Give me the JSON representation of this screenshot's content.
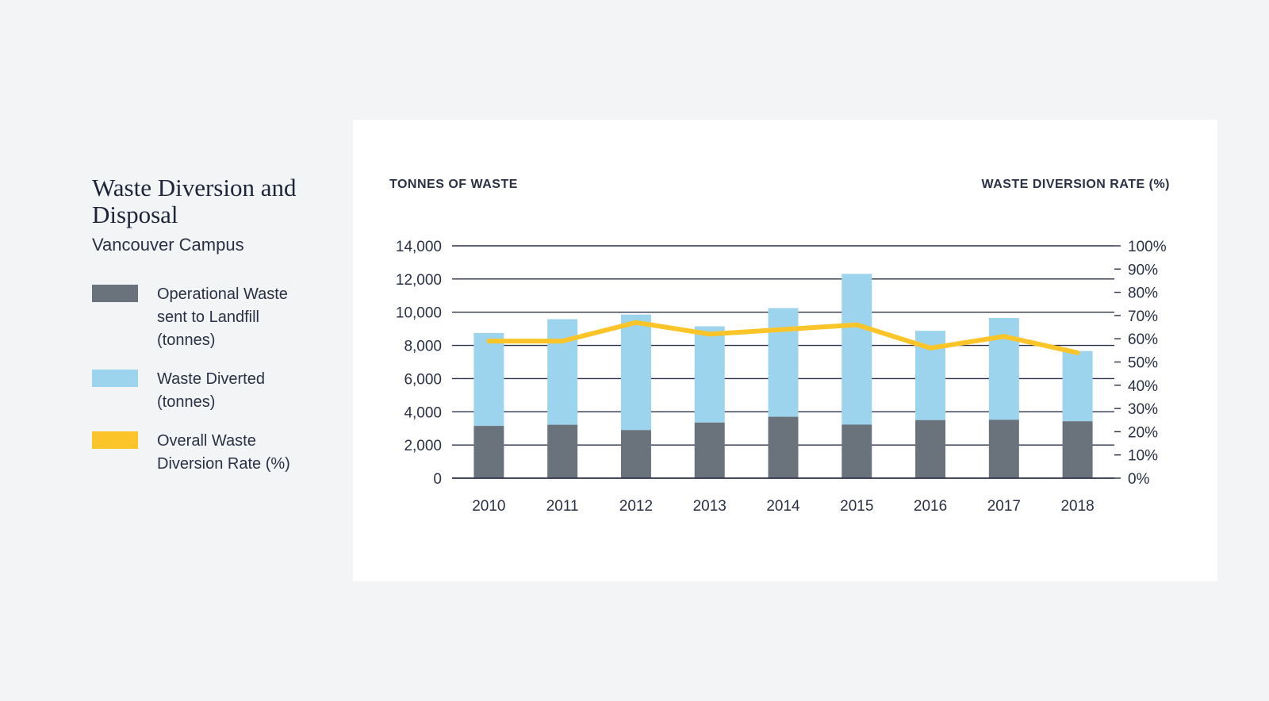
{
  "title": "Waste Diversion and Disposal",
  "subtitle": "Vancouver Campus",
  "legend": [
    {
      "label": "Operational Waste\nsent to Landfill\n(tonnes)",
      "color": "#6a737c"
    },
    {
      "label": "Waste Diverted\n(tonnes)",
      "color": "#9bd4ec"
    },
    {
      "label": "Overall Waste\nDiversion Rate (%)",
      "color": "#fbc52a"
    }
  ],
  "chart_data": {
    "type": "bar",
    "left_axis_label": "TONNES OF WASTE",
    "right_axis_label": "WASTE DIVERSION RATE (%)",
    "categories": [
      "2010",
      "2011",
      "2012",
      "2013",
      "2014",
      "2015",
      "2016",
      "2017",
      "2018"
    ],
    "ylim": [
      0,
      14000
    ],
    "y_ticks": [
      "0",
      "2,000",
      "4,000",
      "6,000",
      "8,000",
      "10,000",
      "12,000",
      "14,000"
    ],
    "y2lim": [
      0,
      100
    ],
    "y2_ticks": [
      "0%",
      "10%",
      "20%",
      "30%",
      "40%",
      "50%",
      "60%",
      "70%",
      "80%",
      "90%",
      "100%"
    ],
    "grid": true,
    "series": [
      {
        "name": "Operational Waste sent to Landfill (tonnes)",
        "type": "stacked-bar",
        "color": "#6a737c",
        "values": [
          3150,
          3220,
          2900,
          3350,
          3700,
          3230,
          3500,
          3520,
          3430
        ]
      },
      {
        "name": "Waste Diverted (tonnes)",
        "type": "stacked-bar",
        "color": "#9bd4ec",
        "values": [
          5600,
          6360,
          6960,
          5800,
          6550,
          9080,
          5380,
          6130,
          4230
        ]
      },
      {
        "name": "Overall Waste Diversion Rate (%)",
        "type": "line",
        "axis": "right",
        "color": "#fbc52a",
        "values": [
          59,
          59,
          67,
          62,
          64,
          66,
          56,
          61,
          54
        ]
      }
    ]
  }
}
